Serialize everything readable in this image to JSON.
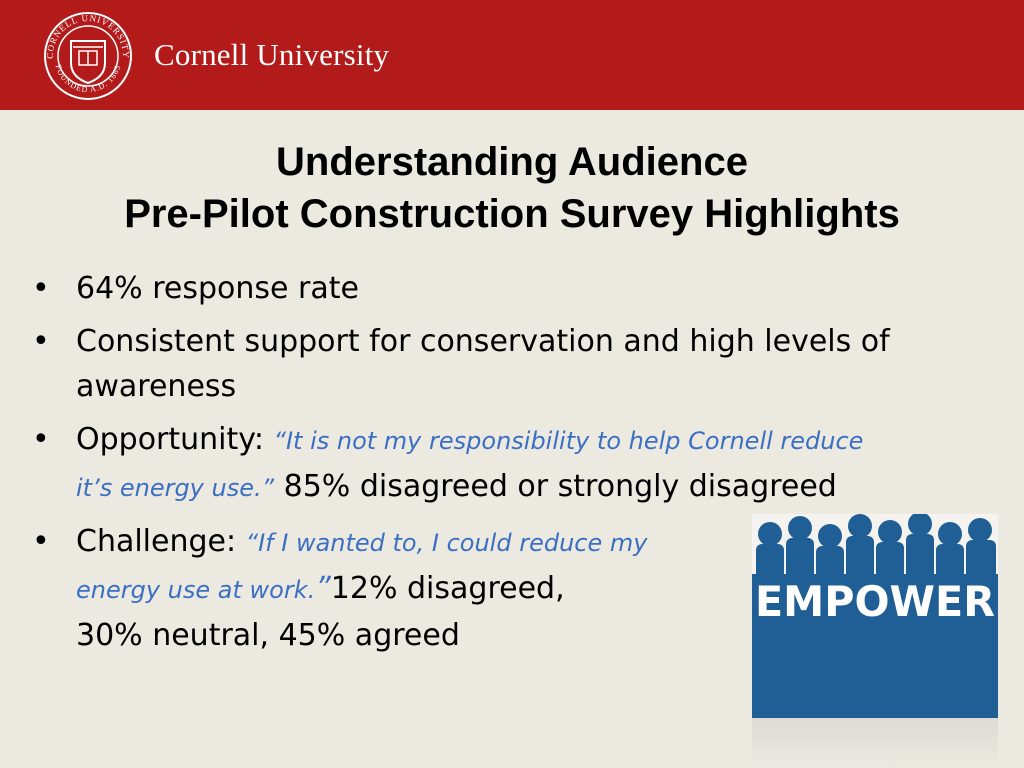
{
  "header": {
    "brand": "Cornell University",
    "seal_text_top": "CORNELL UNIVERSITY",
    "seal_text_bottom": "FOUNDED A.D. 1865"
  },
  "title": {
    "line1": "Understanding Audience",
    "line2": "Pre-Pilot Construction Survey Highlights"
  },
  "bullets": [
    {
      "text": "64% response rate"
    },
    {
      "text": "Consistent support for conservation and high levels of awareness"
    },
    {
      "lead": "Opportunity:",
      "quote": "“It is not my responsibility to help Cornell reduce it’s energy use.”",
      "text": "85% disagreed or strongly disagreed"
    },
    {
      "lead": "Challenge:",
      "quote": "“If I wanted to, I could reduce my energy use at work.",
      "quote_end": "”",
      "text": "12% disagreed,",
      "text2": "30% neutral, 45% agreed"
    }
  ],
  "image": {
    "label": "EMPOWER"
  },
  "colors": {
    "header": "#b31b1b",
    "background": "#ebe9e0",
    "quote": "#3b6fc4",
    "empower": "#1f5f96"
  }
}
